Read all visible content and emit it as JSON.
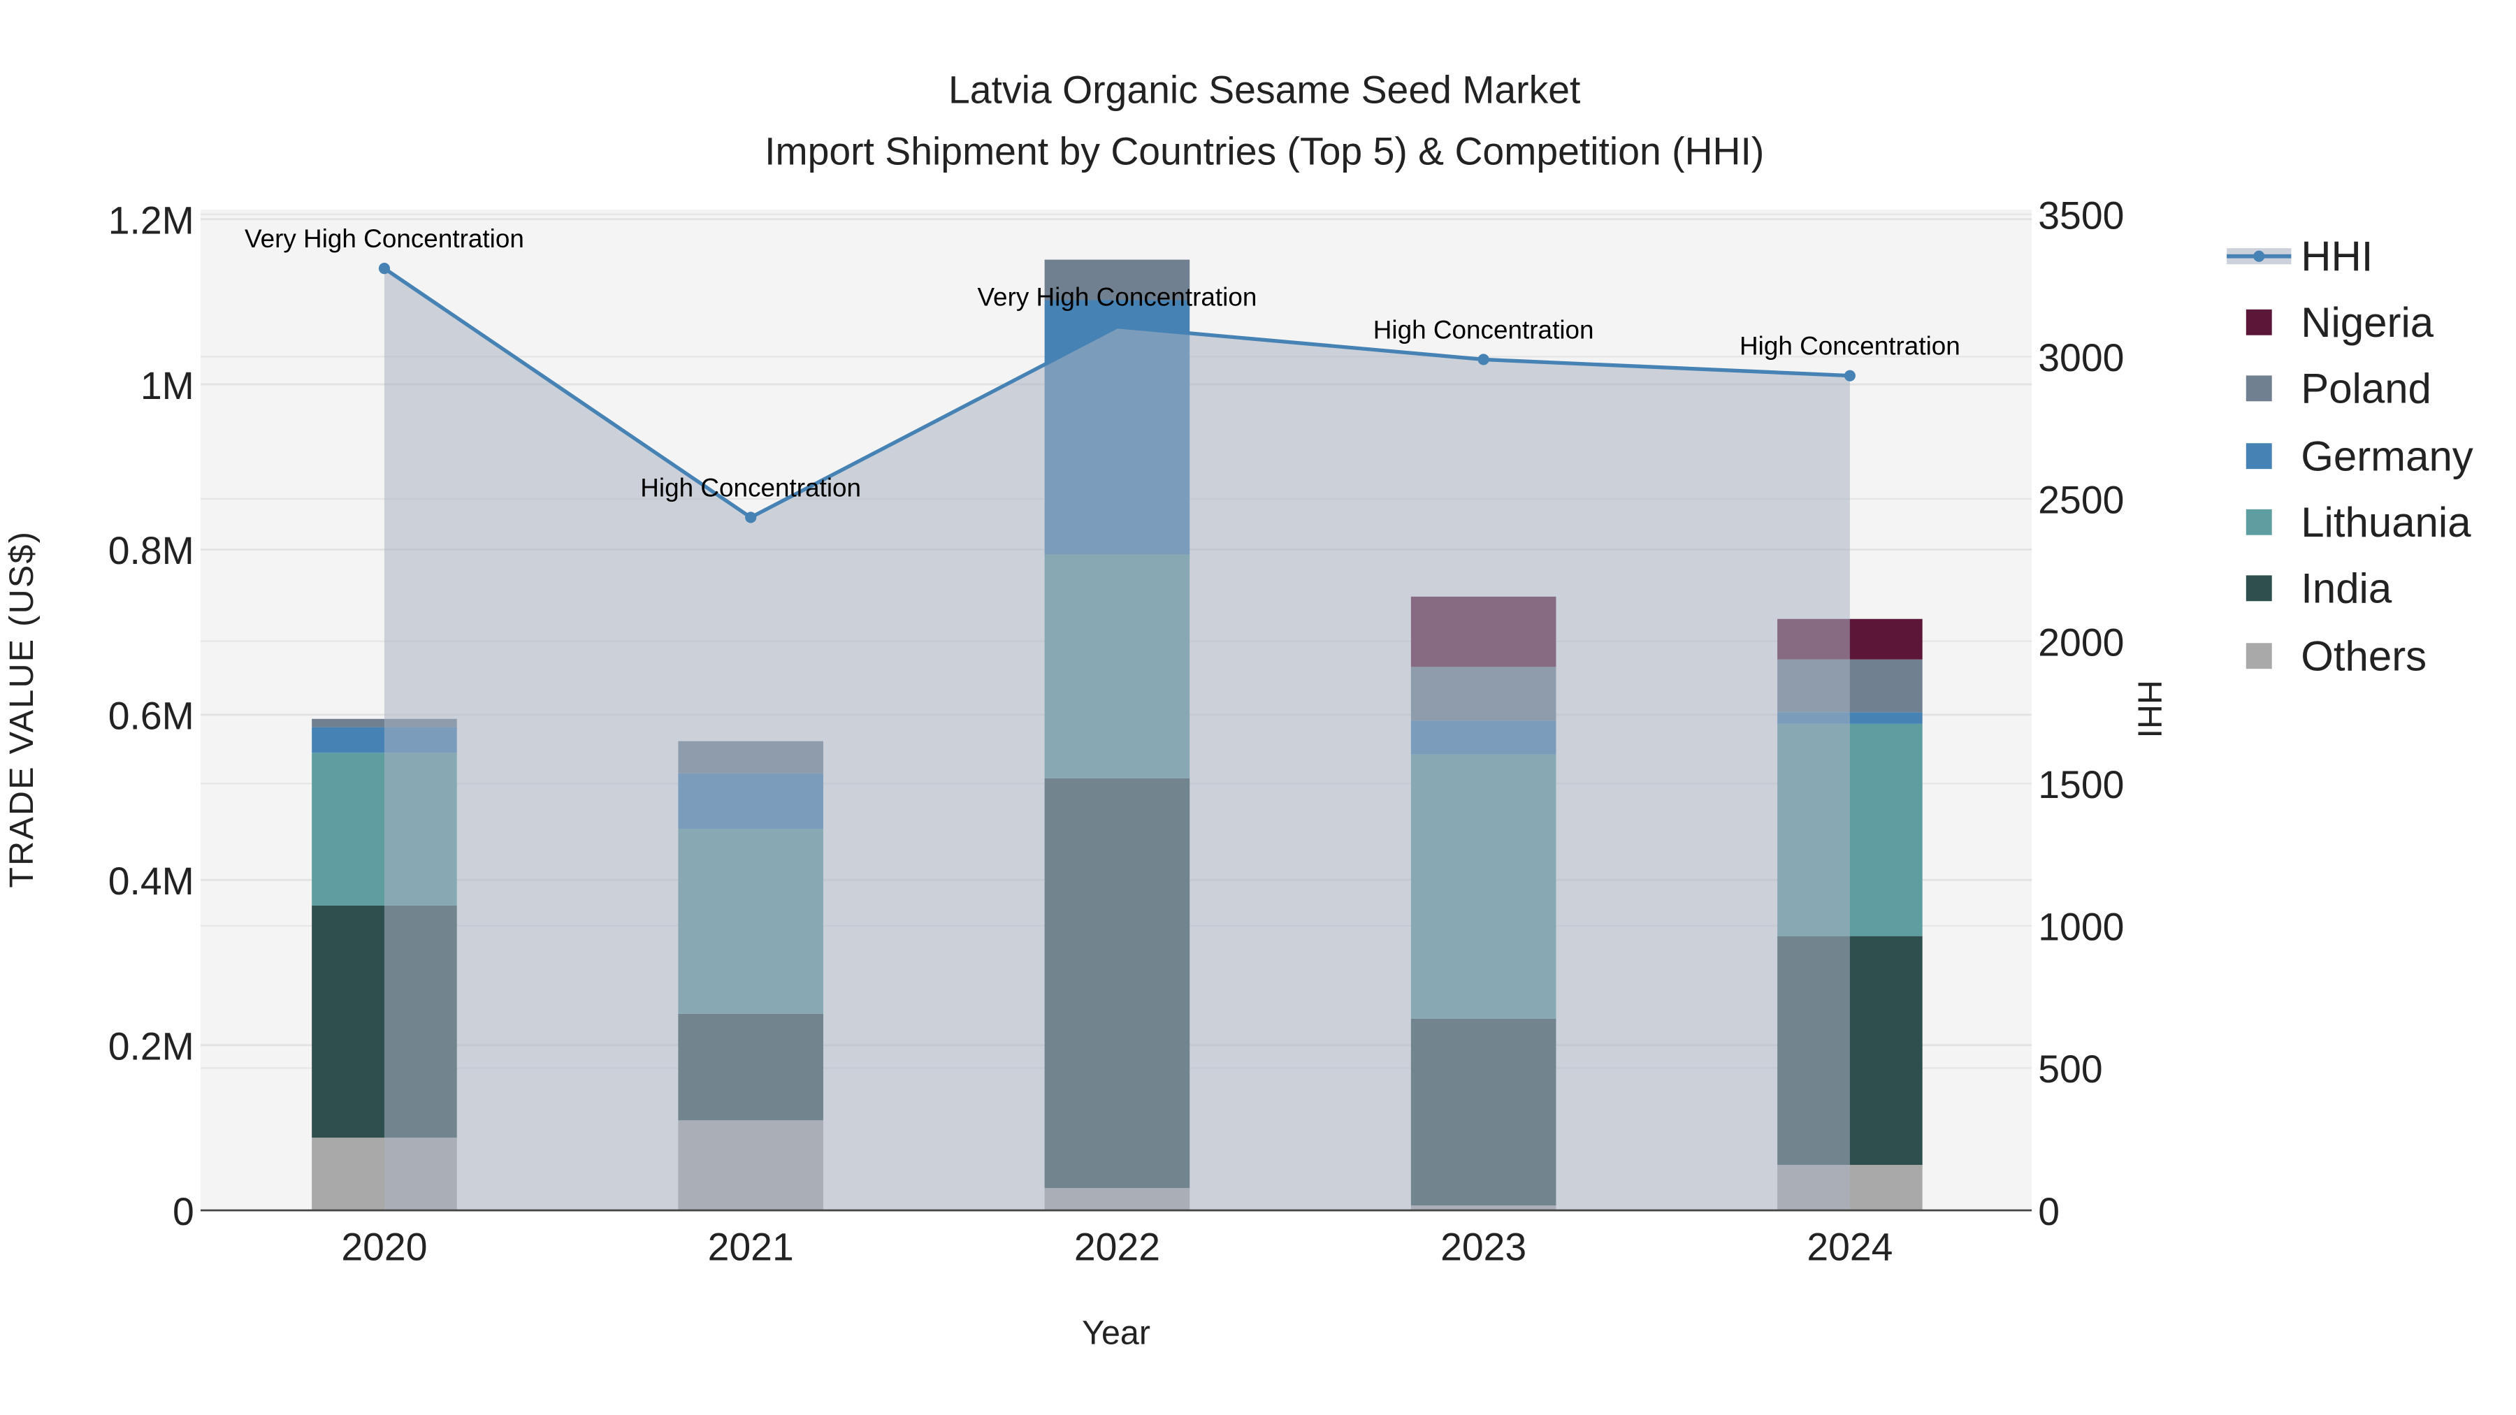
{
  "chart_data": {
    "type": "bar",
    "title": "Latvia Organic Sesame Seed Market",
    "subtitle": "Import Shipment by Countries (Top 5) & Competition (HHI)",
    "xlabel": "Year",
    "ylabel": "TRADE VALUE (US$)",
    "y2label": "HHI",
    "categories": [
      "2020",
      "2021",
      "2022",
      "2023",
      "2024"
    ],
    "ylim": [
      0,
      1200000
    ],
    "y2lim": [
      0,
      3500
    ],
    "yticks": [
      {
        "v": 0,
        "label": "0"
      },
      {
        "v": 200000,
        "label": "0.2M"
      },
      {
        "v": 400000,
        "label": "0.4M"
      },
      {
        "v": 600000,
        "label": "0.6M"
      },
      {
        "v": 800000,
        "label": "0.8M"
      },
      {
        "v": 1000000,
        "label": "1M"
      },
      {
        "v": 1200000,
        "label": "1.2M"
      }
    ],
    "y2ticks": [
      {
        "v": 0,
        "label": "0"
      },
      {
        "v": 500,
        "label": "500"
      },
      {
        "v": 1000,
        "label": "1000"
      },
      {
        "v": 1500,
        "label": "1500"
      },
      {
        "v": 2000,
        "label": "2000"
      },
      {
        "v": 2500,
        "label": "2500"
      },
      {
        "v": 3000,
        "label": "3000"
      },
      {
        "v": 3500,
        "label": "3500"
      }
    ],
    "stacked": true,
    "series": [
      {
        "name": "Others",
        "color": "#a9a9a9",
        "values": [
          88000,
          109000,
          27000,
          6000,
          55000
        ]
      },
      {
        "name": "India",
        "color": "#2f4f4f",
        "values": [
          281000,
          129000,
          496000,
          226000,
          277000
        ]
      },
      {
        "name": "Lithuania",
        "color": "#5f9ea0",
        "values": [
          185000,
          224000,
          271000,
          320000,
          257000
        ]
      },
      {
        "name": "Germany",
        "color": "#4682b4",
        "values": [
          31000,
          67000,
          308000,
          41000,
          14000
        ]
      },
      {
        "name": "Poland",
        "color": "#708090",
        "values": [
          10000,
          39000,
          49000,
          65000,
          64000
        ]
      },
      {
        "name": "Nigeria",
        "color": "#5c1637",
        "values": [
          0,
          0,
          0,
          85000,
          49000
        ]
      }
    ],
    "line": {
      "name": "HHI",
      "color": "#4682b4",
      "axis": "y2",
      "values": [
        3310,
        2435,
        3105,
        2990,
        2933
      ],
      "annotations": [
        "Very High Concentration",
        "High Concentration",
        "Very High Concentration",
        "High Concentration",
        "High Concentration"
      ]
    },
    "legend": {
      "position": "right",
      "entries": [
        "HHI",
        "Nigeria",
        "Poland",
        "Germany",
        "Lithuania",
        "India",
        "Others"
      ]
    },
    "grid": true
  }
}
